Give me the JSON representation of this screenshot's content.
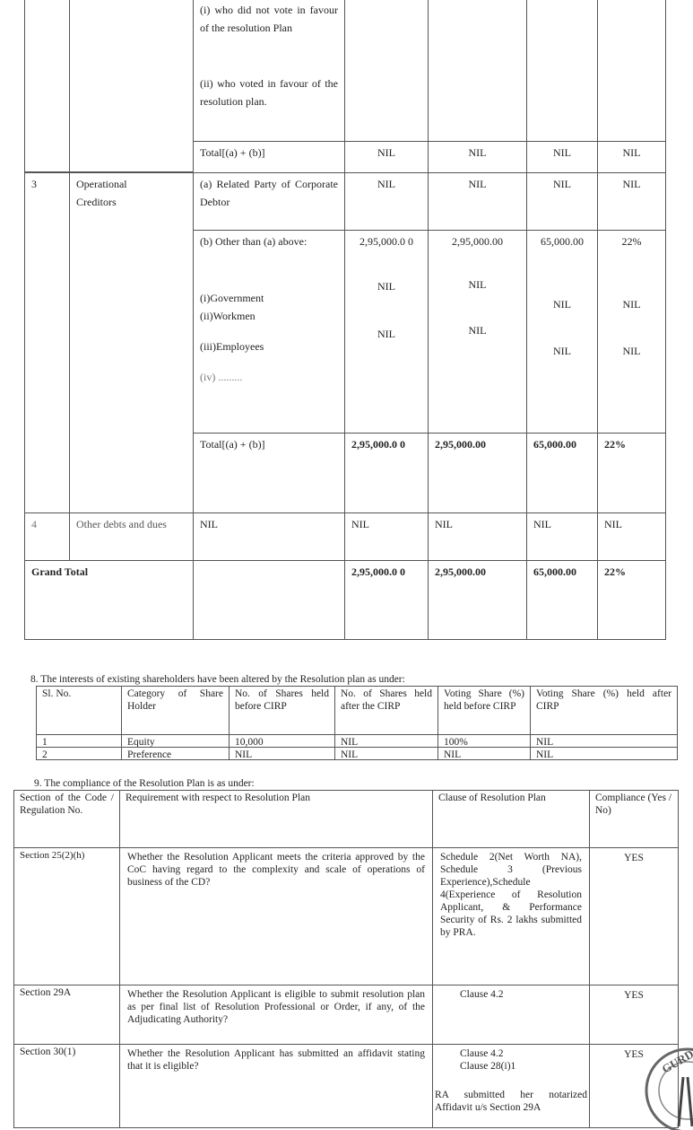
{
  "table_claims": {
    "row_fc_cont": {
      "a": "(i) who did not vote in favour of the resolution Plan",
      "b": "(ii) who voted in favour of the resolution plan."
    },
    "row_fc_total": {
      "label": "Total[(a) + (b)]",
      "v1": "NIL",
      "v2": "NIL",
      "v3": "NIL",
      "v4": "NIL"
    },
    "row3": {
      "sl": "3",
      "category": "Operational Creditors",
      "a": {
        "label": "(a) Related Party of Corporate Debtor",
        "v1": "NIL",
        "v2": "NIL",
        "v3": "NIL",
        "v4": "NIL"
      },
      "b": {
        "label": "(b) Other than (a) above:",
        "v1": "2,95,000.0 0",
        "v2": "2,95,000.00",
        "v3": "65,000.00",
        "v4": "22%"
      },
      "gov": "(i)Government",
      "work": "(ii)Workmen",
      "emp": "(iii)Employees",
      "iv": "(iv) .........",
      "gov_v1": "NIL",
      "emp_v1": "NIL",
      "v2_1": "NIL",
      "v2_2": "NIL",
      "gov_v3": "NIL",
      "emp_v3": "NIL",
      "gov_v4": "NIL",
      "emp_v4": "NIL",
      "total": {
        "label": "Total[(a) + (b)]",
        "v1": "2,95,000.0 0",
        "v2": "2,95,000.00",
        "v3": "65,000.00",
        "v4": "22%"
      }
    },
    "row4": {
      "sl": "4",
      "category": "Other debts and dues",
      "sub": "NIL",
      "v1": "NIL",
      "v2": "NIL",
      "v3": "NIL",
      "v4": "NIL"
    },
    "grand": {
      "label": "Grand Total",
      "v1": "2,95,000.0 0",
      "v2": "2,95,000.00",
      "v3": "65,000.00",
      "v4": "22%"
    }
  },
  "section8": {
    "heading": "8. The interests of existing shareholders have been altered by the Resolution plan as under:",
    "headers": [
      "Sl. No.",
      "Category of Share Holder",
      "No. of Shares held before CIRP",
      "No. of Shares held after the CIRP",
      "Voting Share (%) held before CIRP",
      "Voting Share (%) held after CIRP"
    ],
    "rows": [
      [
        "1",
        "Equity",
        "10,000",
        "NIL",
        "100%",
        "NIL"
      ],
      [
        "2",
        "Preference",
        "NIL",
        "NIL",
        "NIL",
        "NIL"
      ]
    ]
  },
  "section9": {
    "heading": "9. The compliance of the Resolution Plan is as under:",
    "headers": [
      "Section of the Code / Regulation No.",
      "Requirement with respect to Resolution Plan",
      "Clause of Resolution Plan",
      "Compliance (Yes / No)"
    ],
    "rows": [
      {
        "section": "Section 25(2)(h)",
        "requirement": "Whether the Resolution Applicant meets the criteria approved by the CoC having regard to the complexity and scale of operations of business of the CD?",
        "clause": "Schedule 2(Net Worth NA), Schedule 3 (Previous Experience),Schedule 4(Experience of Resolution Applicant, & Performance Security of Rs. 2 lakhs submitted by PRA.",
        "compliance": "YES"
      },
      {
        "section": "Section 29A",
        "requirement": "Whether the Resolution Applicant is eligible to submit resolution plan as per final list of Resolution Professional or Order, if any, of the Adjudicating Authority?",
        "clause": "Clause 4.2",
        "compliance": "YES"
      },
      {
        "section": "Section 30(1)",
        "requirement": "Whether the Resolution Applicant has submitted an affidavit stating that it is eligible?",
        "clause": "Clause 4.2",
        "clause2": "Clause 28(i)1",
        "clause_note": "RA submitted her notarized Affidavit u/s Section 29A",
        "compliance": "YES"
      }
    ]
  },
  "seal": {
    "text": "GURDEV"
  }
}
